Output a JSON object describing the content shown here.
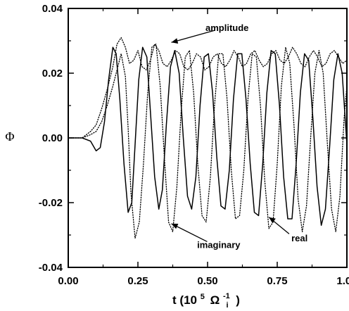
{
  "chart_data": {
    "type": "line",
    "title": "",
    "ylabel": "Φ",
    "xlabel": {
      "prefix": "t (10",
      "exp": "5",
      "unit": "Ω",
      "unit_sub": "i",
      "unit_sup": "-1",
      "suffix": ")"
    },
    "xlim": [
      0.0,
      1.0
    ],
    "ylim": [
      -0.04,
      0.04
    ],
    "x_ticks": [
      {
        "value": 0.0,
        "label": "0.00"
      },
      {
        "value": 0.25,
        "label": "0.25"
      },
      {
        "value": 0.5,
        "label": "0.50"
      },
      {
        "value": 0.75,
        "label": "0.75"
      },
      {
        "value": 1.0,
        "label": "1.00"
      }
    ],
    "y_ticks": [
      {
        "value": -0.04,
        "label": "-0.04"
      },
      {
        "value": -0.02,
        "label": "-0.02"
      },
      {
        "value": 0.0,
        "label": "0.00"
      },
      {
        "value": 0.02,
        "label": "0.02"
      },
      {
        "value": 0.04,
        "label": "0.04"
      }
    ],
    "grid": false,
    "legend": "none",
    "series": [
      {
        "style": "solid",
        "color": "#000000",
        "x": [
          0.0,
          0.05,
          0.08,
          0.1,
          0.115,
          0.13,
          0.145,
          0.16,
          0.172,
          0.185,
          0.2,
          0.215,
          0.228,
          0.24,
          0.253,
          0.267,
          0.282,
          0.295,
          0.31,
          0.325,
          0.338,
          0.352,
          0.367,
          0.382,
          0.398,
          0.413,
          0.428,
          0.443,
          0.458,
          0.473,
          0.488,
          0.503,
          0.518,
          0.533,
          0.548,
          0.563,
          0.578,
          0.593,
          0.608,
          0.623,
          0.638,
          0.653,
          0.668,
          0.683,
          0.698,
          0.713,
          0.728,
          0.743,
          0.758,
          0.773,
          0.788,
          0.803,
          0.818,
          0.833,
          0.848,
          0.863,
          0.878,
          0.893,
          0.908,
          0.923,
          0.938,
          0.953,
          0.968,
          0.983,
          1.0
        ],
        "y": [
          0.0,
          0.0,
          -0.001,
          -0.004,
          -0.003,
          0.005,
          0.018,
          0.028,
          0.026,
          0.012,
          -0.008,
          -0.023,
          -0.02,
          -0.002,
          0.018,
          0.028,
          0.025,
          0.008,
          -0.012,
          -0.022,
          -0.016,
          0.004,
          0.022,
          0.027,
          0.02,
          0.0,
          -0.018,
          -0.022,
          -0.012,
          0.01,
          0.025,
          0.026,
          0.014,
          -0.006,
          -0.021,
          -0.022,
          -0.01,
          0.012,
          0.026,
          0.026,
          0.012,
          -0.008,
          -0.023,
          -0.024,
          -0.008,
          0.014,
          0.027,
          0.026,
          0.01,
          -0.012,
          -0.025,
          -0.025,
          -0.008,
          0.014,
          0.026,
          0.024,
          0.006,
          -0.015,
          -0.027,
          -0.022,
          -0.003,
          0.018,
          0.026,
          0.02,
          -0.002
        ]
      },
      {
        "style": "dotted",
        "color": "#000000",
        "x": [
          0.0,
          0.05,
          0.08,
          0.1,
          0.12,
          0.14,
          0.16,
          0.175,
          0.19,
          0.205,
          0.215,
          0.225,
          0.24,
          0.255,
          0.27,
          0.285,
          0.3,
          0.315,
          0.33,
          0.345,
          0.36,
          0.375,
          0.39,
          0.405,
          0.42,
          0.435,
          0.45,
          0.465,
          0.48,
          0.495,
          0.51,
          0.525,
          0.54,
          0.555,
          0.57,
          0.585,
          0.6,
          0.615,
          0.63,
          0.645,
          0.66,
          0.675,
          0.69,
          0.705,
          0.72,
          0.735,
          0.75,
          0.765,
          0.78,
          0.795,
          0.81,
          0.825,
          0.84,
          0.855,
          0.87,
          0.885,
          0.9,
          0.915,
          0.93,
          0.945,
          0.96,
          0.975,
          0.99,
          1.0
        ],
        "y": [
          0.0,
          0.0,
          0.001,
          0.002,
          0.005,
          0.01,
          0.016,
          0.021,
          0.026,
          0.019,
          0.003,
          -0.017,
          -0.031,
          -0.026,
          -0.008,
          0.014,
          0.028,
          0.029,
          0.016,
          -0.006,
          -0.026,
          -0.029,
          -0.015,
          0.008,
          0.025,
          0.027,
          0.014,
          -0.008,
          -0.024,
          -0.026,
          -0.012,
          0.01,
          0.026,
          0.026,
          0.012,
          -0.01,
          -0.025,
          -0.024,
          -0.01,
          0.012,
          0.026,
          0.025,
          0.01,
          -0.013,
          -0.028,
          -0.026,
          -0.008,
          0.016,
          0.028,
          0.023,
          0.004,
          -0.019,
          -0.029,
          -0.021,
          0.0,
          0.02,
          0.027,
          0.02,
          -0.002,
          -0.022,
          -0.029,
          -0.018,
          0.006,
          0.016
        ]
      },
      {
        "style": "dotted",
        "color": "#000000",
        "x": [
          0.0,
          0.05,
          0.08,
          0.1,
          0.12,
          0.14,
          0.16,
          0.175,
          0.19,
          0.205,
          0.22,
          0.235,
          0.25,
          0.265,
          0.28,
          0.295,
          0.31,
          0.325,
          0.34,
          0.355,
          0.37,
          0.385,
          0.4,
          0.415,
          0.43,
          0.445,
          0.46,
          0.475,
          0.49,
          0.505,
          0.52,
          0.535,
          0.55,
          0.565,
          0.58,
          0.595,
          0.61,
          0.625,
          0.64,
          0.655,
          0.67,
          0.685,
          0.7,
          0.715,
          0.73,
          0.745,
          0.76,
          0.775,
          0.79,
          0.805,
          0.82,
          0.835,
          0.85,
          0.865,
          0.88,
          0.895,
          0.91,
          0.925,
          0.94,
          0.955,
          0.97,
          0.985,
          1.0
        ],
        "y": [
          0.0,
          0.0,
          0.002,
          0.004,
          0.009,
          0.015,
          0.022,
          0.029,
          0.031,
          0.028,
          0.023,
          0.024,
          0.027,
          0.022,
          0.021,
          0.024,
          0.029,
          0.027,
          0.023,
          0.022,
          0.024,
          0.027,
          0.026,
          0.022,
          0.021,
          0.023,
          0.026,
          0.025,
          0.021,
          0.022,
          0.025,
          0.026,
          0.023,
          0.022,
          0.024,
          0.027,
          0.025,
          0.022,
          0.023,
          0.026,
          0.027,
          0.024,
          0.022,
          0.023,
          0.026,
          0.027,
          0.024,
          0.023,
          0.025,
          0.028,
          0.026,
          0.023,
          0.022,
          0.025,
          0.027,
          0.025,
          0.022,
          0.023,
          0.026,
          0.027,
          0.025,
          0.023,
          0.024
        ]
      }
    ],
    "annotations": [
      {
        "text": "amplitude",
        "at": [
          0.57,
          0.033
        ],
        "point": [
          0.37,
          0.0295
        ]
      },
      {
        "text": "imaginary",
        "at": [
          0.54,
          -0.034
        ],
        "point": [
          0.37,
          -0.0265
        ]
      },
      {
        "text": "real",
        "at": [
          0.83,
          -0.032
        ],
        "point": [
          0.72,
          -0.0245
        ]
      }
    ]
  }
}
